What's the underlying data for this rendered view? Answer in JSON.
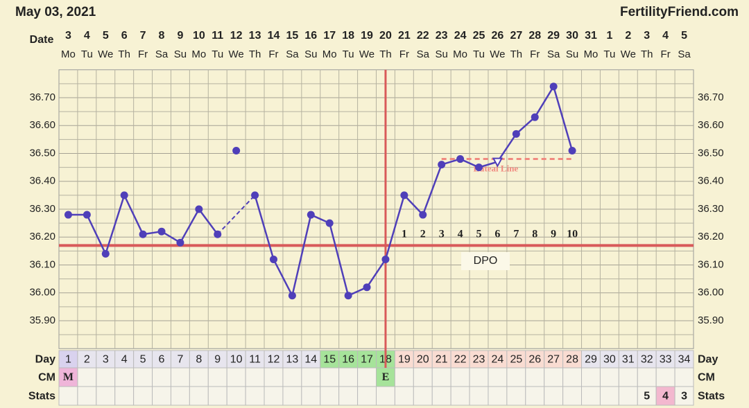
{
  "chart_data": {
    "type": "line",
    "date_heading": "May 03, 2021",
    "site": "FertilityFriend.com",
    "date_label": "Date",
    "dates": [
      3,
      4,
      5,
      6,
      7,
      8,
      9,
      10,
      11,
      12,
      13,
      14,
      15,
      16,
      17,
      18,
      19,
      20,
      21,
      22,
      23,
      24,
      25,
      26,
      27,
      28,
      29,
      30,
      31,
      1,
      2,
      3,
      4,
      5
    ],
    "weekdays": [
      "Mo",
      "Tu",
      "We",
      "Th",
      "Fr",
      "Sa",
      "Su",
      "Mo",
      "Tu",
      "We",
      "Th",
      "Fr",
      "Sa",
      "Su",
      "Mo",
      "Tu",
      "We",
      "Th",
      "Fr",
      "Sa",
      "Su",
      "Mo",
      "Tu",
      "We",
      "Th",
      "Fr",
      "Sa",
      "Su",
      "Mo",
      "Tu",
      "We",
      "Th",
      "Fr",
      "Sa"
    ],
    "day_label": "Day",
    "days": [
      1,
      2,
      3,
      4,
      5,
      6,
      7,
      8,
      9,
      10,
      11,
      12,
      13,
      14,
      15,
      16,
      17,
      18,
      19,
      20,
      21,
      22,
      23,
      24,
      25,
      26,
      27,
      28,
      29,
      30,
      31,
      32,
      33,
      34
    ],
    "cm_label": "CM",
    "cm": [
      "M",
      null,
      null,
      null,
      null,
      null,
      null,
      null,
      null,
      null,
      null,
      null,
      null,
      null,
      null,
      null,
      null,
      "E",
      null,
      null,
      null,
      null,
      null,
      null,
      null,
      null,
      null,
      null,
      null,
      null,
      null,
      null,
      null,
      null
    ],
    "stats_label": "Stats",
    "stats": [
      null,
      null,
      null,
      null,
      null,
      null,
      null,
      null,
      null,
      null,
      null,
      null,
      null,
      null,
      null,
      null,
      null,
      null,
      null,
      null,
      null,
      null,
      null,
      null,
      null,
      null,
      null,
      null,
      null,
      null,
      null,
      5,
      4,
      3
    ],
    "values": [
      36.28,
      36.28,
      36.14,
      36.35,
      36.21,
      36.22,
      36.18,
      36.3,
      36.21,
      36.51,
      36.35,
      36.12,
      35.99,
      36.28,
      36.25,
      35.99,
      36.02,
      36.12,
      36.35,
      36.28,
      36.46,
      36.48,
      36.45,
      36.47,
      36.57,
      36.63,
      36.74,
      36.51,
      null,
      null,
      null,
      null,
      null,
      null
    ],
    "color": "#4f3fb9",
    "excluded_days": [
      10
    ],
    "open_marker_days": [
      24
    ],
    "ylim": [
      35.8,
      36.8
    ],
    "yticks": [
      {
        "value": 35.9,
        "label": "35.90"
      },
      {
        "value": 36.0,
        "label": "36.00"
      },
      {
        "value": 36.1,
        "label": "36.10"
      },
      {
        "value": 36.2,
        "label": "36.20"
      },
      {
        "value": 36.3,
        "label": "36.30"
      },
      {
        "value": 36.4,
        "label": "36.40"
      },
      {
        "value": 36.5,
        "label": "36.50"
      },
      {
        "value": 36.6,
        "label": "36.60"
      },
      {
        "value": 36.7,
        "label": "36.70"
      }
    ],
    "minor_yticks": [
      35.85,
      35.95,
      36.05,
      36.15,
      36.25,
      36.35,
      36.45,
      36.55,
      36.65,
      36.75
    ],
    "grid": true,
    "coverline": {
      "value": 36.17,
      "color": "#d85a5a"
    },
    "ovulation_day": 18,
    "luteal_line": {
      "label": "Luteal Line",
      "value": 36.48,
      "from_day": 21,
      "to_day": 28,
      "color": "#f08a80"
    },
    "dpo": [
      null,
      null,
      null,
      null,
      null,
      null,
      null,
      null,
      null,
      null,
      null,
      null,
      null,
      null,
      null,
      null,
      null,
      null,
      1,
      2,
      3,
      4,
      5,
      6,
      7,
      8,
      9,
      10,
      null,
      null,
      null,
      null,
      null,
      null
    ],
    "dpo_label": "DPO",
    "day_colors": [
      "#d9d2ee",
      null,
      null,
      null,
      null,
      null,
      null,
      null,
      null,
      null,
      null,
      null,
      null,
      null,
      "#a6e39a",
      "#a6e39a",
      "#a6e39a",
      "#a6e39a",
      "#f9dcd2",
      "#f9dcd2",
      "#f9dcd2",
      "#f9dcd2",
      "#f9dcd2",
      "#f9dcd2",
      "#f9dcd2",
      "#f9dcd2",
      "#f9dcd2",
      "#f9dcd2",
      null,
      null,
      null,
      null,
      null,
      null
    ],
    "cm_colors": [
      "#efb5d9",
      null,
      null,
      null,
      null,
      null,
      null,
      null,
      null,
      null,
      null,
      null,
      null,
      null,
      null,
      null,
      null,
      "#a6e39a",
      null,
      null,
      null,
      null,
      null,
      null,
      null,
      null,
      null,
      null,
      null,
      null,
      null,
      null,
      null,
      null
    ],
    "stats_colors": [
      null,
      null,
      null,
      null,
      null,
      null,
      null,
      null,
      null,
      null,
      null,
      null,
      null,
      null,
      null,
      null,
      null,
      null,
      null,
      null,
      null,
      null,
      null,
      null,
      null,
      null,
      null,
      null,
      null,
      null,
      null,
      null,
      "#f3b8cf",
      null
    ]
  }
}
